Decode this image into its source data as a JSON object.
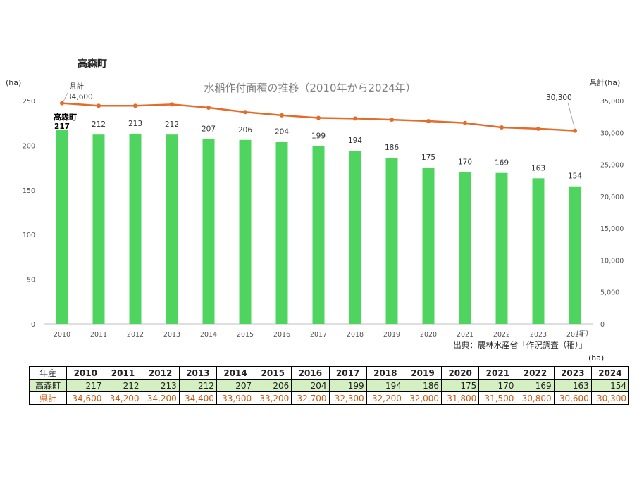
{
  "heading": "高森町",
  "table_unit": "(ha)",
  "table": {
    "year_header": "年産",
    "town_label": "高森町",
    "pref_label": "県計",
    "years": [
      "2010",
      "2011",
      "2012",
      "2013",
      "2014",
      "2015",
      "2016",
      "2017",
      "2018",
      "2019",
      "2020",
      "2021",
      "2022",
      "2023",
      "2024"
    ],
    "town_values": [
      "217",
      "212",
      "213",
      "212",
      "207",
      "206",
      "204",
      "199",
      "194",
      "186",
      "175",
      "170",
      "169",
      "163",
      "154"
    ],
    "pref_values": [
      "34,600",
      "34,200",
      "34,200",
      "34,400",
      "33,900",
      "33,200",
      "32,700",
      "32,300",
      "32,200",
      "32,000",
      "31,800",
      "31,500",
      "30,800",
      "30,600",
      "30,300"
    ]
  },
  "colors": {
    "bar": "#4fd45f",
    "line": "#e46c2a",
    "town_row_bg": "#d4f0c2",
    "pref_text": "#c55a11"
  },
  "chart_data": {
    "type": "bar",
    "title": "水稲作付面積の推移（2010年から2024年）",
    "source": "出典：農林水産省「作況調査（稲）」",
    "categories": [
      "2010",
      "2011",
      "2012",
      "2013",
      "2014",
      "2015",
      "2016",
      "2017",
      "2018",
      "2019",
      "2020",
      "2021",
      "2022",
      "2023",
      "2024"
    ],
    "xlabel": "(年)",
    "ylabel_left": "(ha)",
    "ylabel_right": "県計(ha)",
    "ylim_left": [
      0,
      250
    ],
    "yticks_left": [
      0,
      50,
      100,
      150,
      200,
      250
    ],
    "ylim_right": [
      0,
      35000
    ],
    "yticks_right": [
      "0",
      "5,000",
      "10,000",
      "15,000",
      "20,000",
      "25,000",
      "30,000",
      "35,000"
    ],
    "series": [
      {
        "name": "高森町",
        "type": "bar",
        "axis": "left",
        "values": [
          217,
          212,
          213,
          212,
          207,
          206,
          204,
          199,
          194,
          186,
          175,
          170,
          169,
          163,
          154
        ],
        "labels": [
          "217",
          "212",
          "213",
          "212",
          "207",
          "206",
          "204",
          "199",
          "194",
          "186",
          "175",
          "170",
          "169",
          "163",
          "154"
        ]
      },
      {
        "name": "県計",
        "type": "line",
        "axis": "right",
        "values": [
          34600,
          34200,
          34200,
          34400,
          33900,
          33200,
          32700,
          32300,
          32200,
          32000,
          31800,
          31500,
          30800,
          30600,
          30300
        ]
      }
    ],
    "annotations": {
      "line_first": "34,600",
      "line_last": "30,300",
      "line_name": "県計",
      "bar_name": "高森町"
    }
  }
}
